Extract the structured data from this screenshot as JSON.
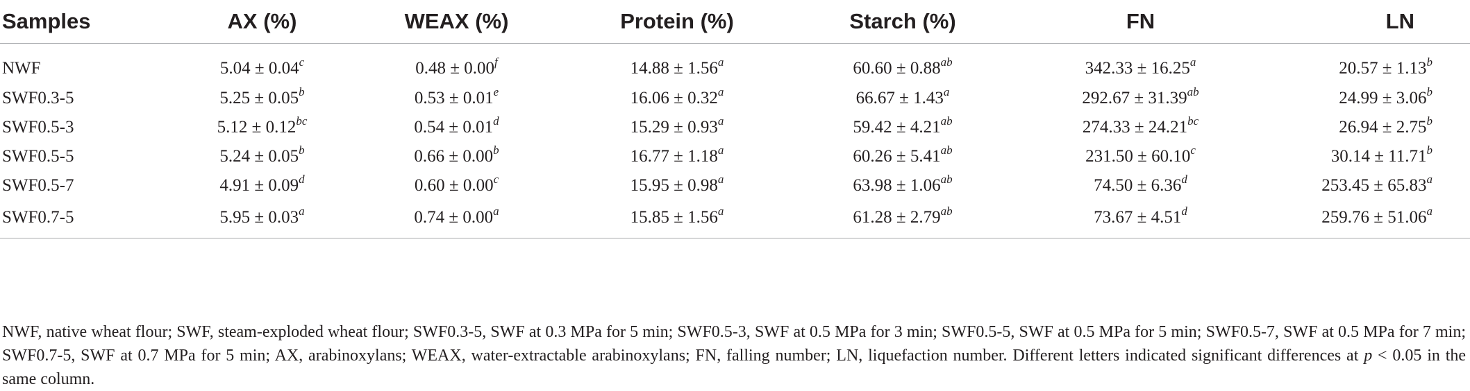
{
  "table": {
    "headers": [
      "Samples",
      "AX (%)",
      "WEAX (%)",
      "Protein (%)",
      "Starch (%)",
      "FN",
      "LN"
    ],
    "rows": [
      {
        "sample": "NWF",
        "cells": [
          {
            "v": "5.04 ± 0.04",
            "s": "c"
          },
          {
            "v": "0.48 ± 0.00",
            "s": "f"
          },
          {
            "v": "14.88 ± 1.56",
            "s": "a"
          },
          {
            "v": "60.60 ± 0.88",
            "s": "ab"
          },
          {
            "v": "342.33 ± 16.25",
            "s": "a"
          },
          {
            "v": "20.57 ± 1.13",
            "s": "b"
          }
        ]
      },
      {
        "sample": "SWF0.3-5",
        "cells": [
          {
            "v": "5.25 ± 0.05",
            "s": "b"
          },
          {
            "v": "0.53 ± 0.01",
            "s": "e"
          },
          {
            "v": "16.06 ± 0.32",
            "s": "a"
          },
          {
            "v": "66.67 ± 1.43",
            "s": "a"
          },
          {
            "v": "292.67 ± 31.39",
            "s": "ab"
          },
          {
            "v": "24.99 ± 3.06",
            "s": "b"
          }
        ]
      },
      {
        "sample": "SWF0.5-3",
        "cells": [
          {
            "v": "5.12 ± 0.12",
            "s": "bc"
          },
          {
            "v": "0.54 ± 0.01",
            "s": "d"
          },
          {
            "v": "15.29 ± 0.93",
            "s": "a"
          },
          {
            "v": "59.42 ± 4.21",
            "s": "ab"
          },
          {
            "v": "274.33 ± 24.21",
            "s": "bc"
          },
          {
            "v": "26.94 ± 2.75",
            "s": "b"
          }
        ]
      },
      {
        "sample": "SWF0.5-5",
        "cells": [
          {
            "v": "5.24 ± 0.05",
            "s": "b"
          },
          {
            "v": "0.66 ± 0.00",
            "s": "b"
          },
          {
            "v": "16.77 ± 1.18",
            "s": "a"
          },
          {
            "v": "60.26 ± 5.41",
            "s": "ab"
          },
          {
            "v": "231.50 ± 60.10",
            "s": "c"
          },
          {
            "v": "30.14 ± 11.71",
            "s": "b"
          }
        ]
      },
      {
        "sample": "SWF0.5-7",
        "cells": [
          {
            "v": "4.91 ± 0.09",
            "s": "d"
          },
          {
            "v": "0.60 ± 0.00",
            "s": "c"
          },
          {
            "v": "15.95 ± 0.98",
            "s": "a"
          },
          {
            "v": "63.98 ± 1.06",
            "s": "ab"
          },
          {
            "v": "74.50 ± 6.36",
            "s": "d"
          },
          {
            "v": "253.45 ± 65.83",
            "s": "a"
          }
        ]
      },
      {
        "sample": "SWF0.7-5",
        "cells": [
          {
            "v": "5.95 ± 0.03",
            "s": "a"
          },
          {
            "v": "0.74 ± 0.00",
            "s": "a"
          },
          {
            "v": "15.85 ± 1.56",
            "s": "a"
          },
          {
            "v": "61.28 ± 2.79",
            "s": "ab"
          },
          {
            "v": "73.67 ± 4.51",
            "s": "d"
          },
          {
            "v": "259.76 ± 51.06",
            "s": "a"
          }
        ]
      }
    ]
  },
  "footnote": {
    "text": "NWF, native wheat flour; SWF, steam-exploded wheat flour; SWF0.3-5, SWF at 0.3 MPa for 5 min; SWF0.5-3, SWF at 0.5 MPa for 3 min; SWF0.5-5, SWF at 0.5 MPa for 5 min; SWF0.5-7, SWF at 0.5 MPa for 7 min; SWF0.7-5, SWF at 0.7 MPa for 5 min; AX, arabinoxylans; WEAX, water-extractable arabinoxylans; FN, falling number; LN, liquefaction number. Different letters indicated significant differences at",
    "p_symbol": "p",
    "tail": "< 0.05 in the same column."
  }
}
